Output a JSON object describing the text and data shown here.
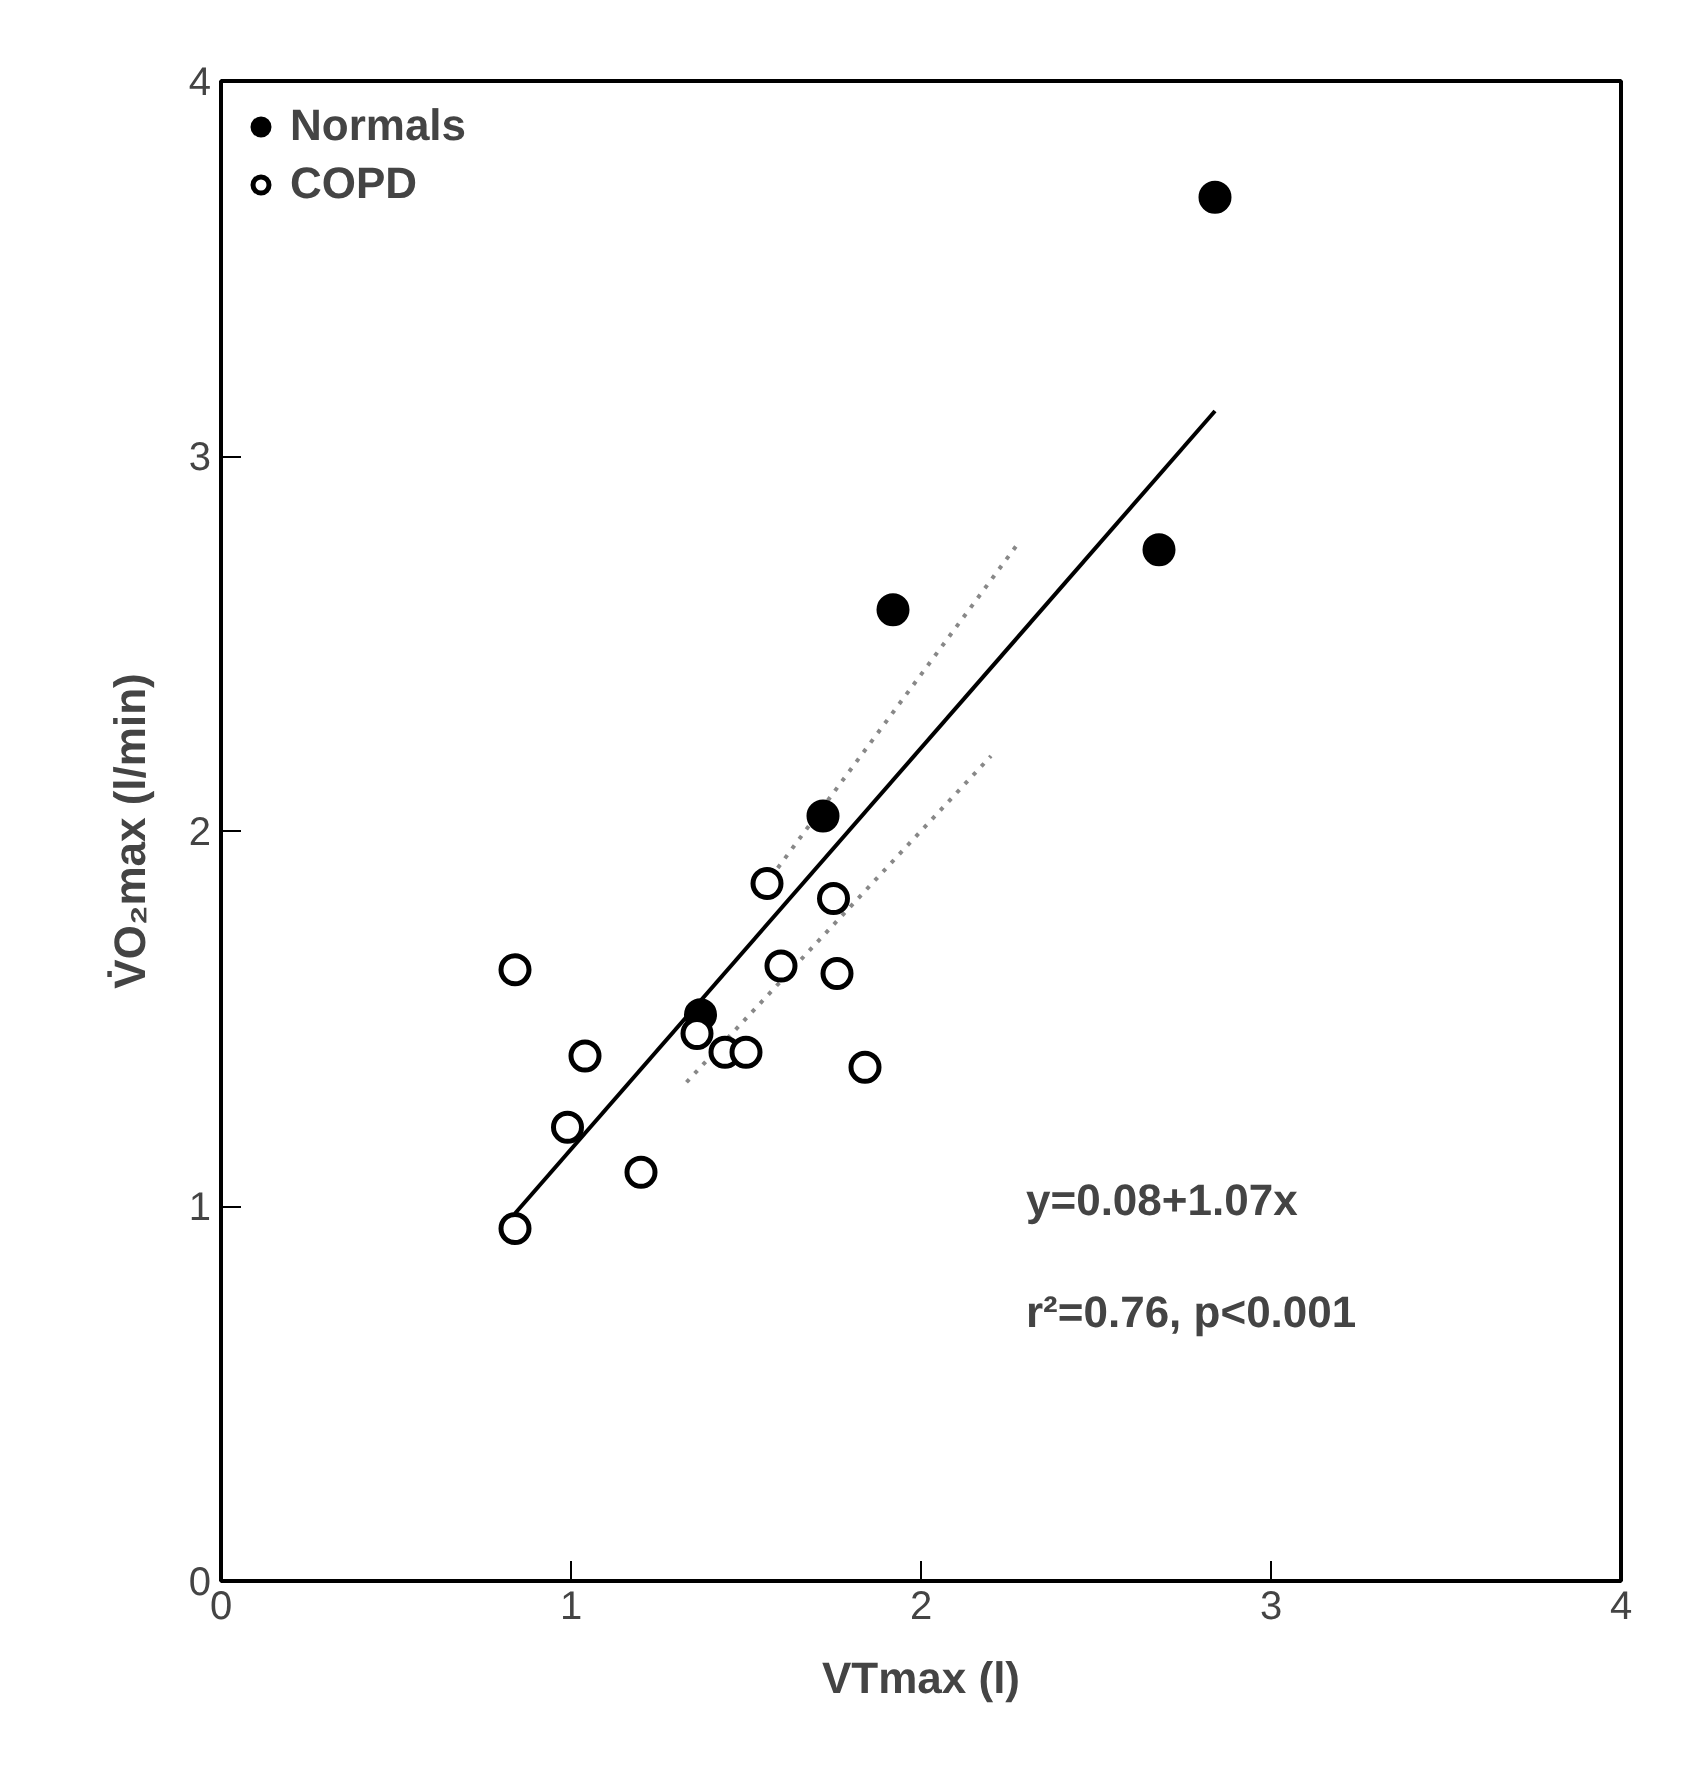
{
  "chart_data": {
    "type": "scatter",
    "xlabel": "VTmax (l)",
    "ylabel": "V̇O₂max (l/min)",
    "xlim": [
      0,
      4
    ],
    "ylim": [
      0,
      4
    ],
    "xticks": [
      0,
      1,
      2,
      3,
      4
    ],
    "yticks": [
      0,
      1,
      2,
      3,
      4
    ],
    "grid": false,
    "legend": "top left",
    "series": [
      {
        "name": "Normals",
        "color": "#000000",
        "marker": "circle",
        "x": [
          2.84,
          2.68,
          1.92,
          1.72,
          1.37
        ],
        "values": [
          3.69,
          2.75,
          2.59,
          2.04,
          1.51
        ]
      },
      {
        "name": "COPD",
        "color": "#000000",
        "marker": "circle",
        "x": [
          0.84,
          1.04,
          0.99,
          0.84,
          1.2,
          1.56,
          1.75,
          1.6,
          1.76,
          1.84,
          1.36,
          1.44,
          1.5
        ],
        "values": [
          1.63,
          1.4,
          1.21,
          0.94,
          1.09,
          1.86,
          1.82,
          1.64,
          1.62,
          1.37,
          1.46,
          1.41,
          1.41
        ]
      },
      {
        "type": "line",
        "color": "#000000",
        "line_style": "solid",
        "marker": "none",
        "x": [
          0.84,
          2.84
        ],
        "values": [
          0.98,
          3.12
        ]
      },
      {
        "type": "line",
        "color": "#888888",
        "line_style": "dotted",
        "marker": "none",
        "x": [
          1.55,
          2.28
        ],
        "values": [
          1.85,
          2.77
        ]
      },
      {
        "type": "line",
        "color": "#888888",
        "line_style": "dotted",
        "marker": "none",
        "x": [
          1.33,
          2.2
        ],
        "values": [
          1.33,
          2.2
        ]
      }
    ],
    "annotations": [
      "y=0.08+1.07x",
      "r²=0.76, p<0.001"
    ]
  }
}
